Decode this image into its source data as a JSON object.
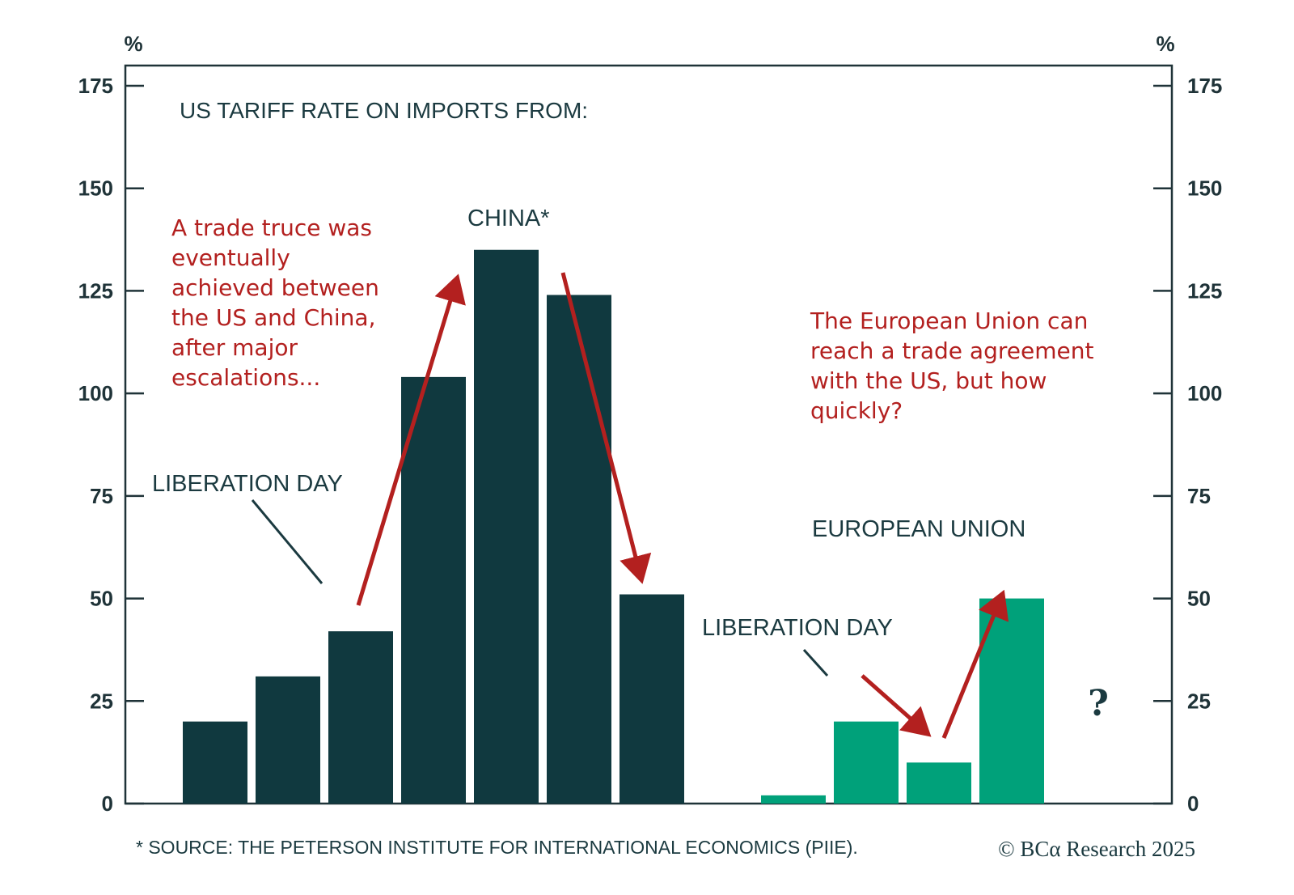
{
  "chart_data": {
    "type": "bar",
    "title": "US TARIFF RATE ON IMPORTS FROM:",
    "ylabel_left": "%",
    "ylabel_right": "%",
    "ylim": [
      0,
      175
    ],
    "yticks": [
      "0",
      "25",
      "50",
      "75",
      "100",
      "125",
      "150",
      "175"
    ],
    "grid": false,
    "series": [
      {
        "name": "CHINA*",
        "color": "#10393f",
        "values": [
          20,
          31,
          42,
          104,
          135,
          124,
          51
        ]
      },
      {
        "name": "EUROPEAN UNION",
        "color": "#00a17a",
        "values": [
          2,
          20,
          10,
          50
        ]
      }
    ],
    "annotations": {
      "china_liberation_day": "LIBERATION DAY",
      "eu_liberation_day": "LIBERATION DAY",
      "china_note": [
        "A trade truce was",
        "eventually",
        "achieved between",
        "the US and China,",
        "after major",
        "escalations..."
      ],
      "eu_note": [
        "The European Union can",
        "reach a trade agreement",
        "with the US, but how",
        "quickly?"
      ],
      "future": "?"
    }
  },
  "footer": {
    "source": "* SOURCE: THE PETERSON INSTITUTE FOR INTERNATIONAL ECONOMICS (PIIE).",
    "brand": "© BCα Research 2025"
  },
  "colors": {
    "axis": "#1f3338",
    "dark_bar": "#10393f",
    "green_bar": "#00a17a",
    "red": "#b3201f",
    "text_dark": "#1b3a40"
  }
}
